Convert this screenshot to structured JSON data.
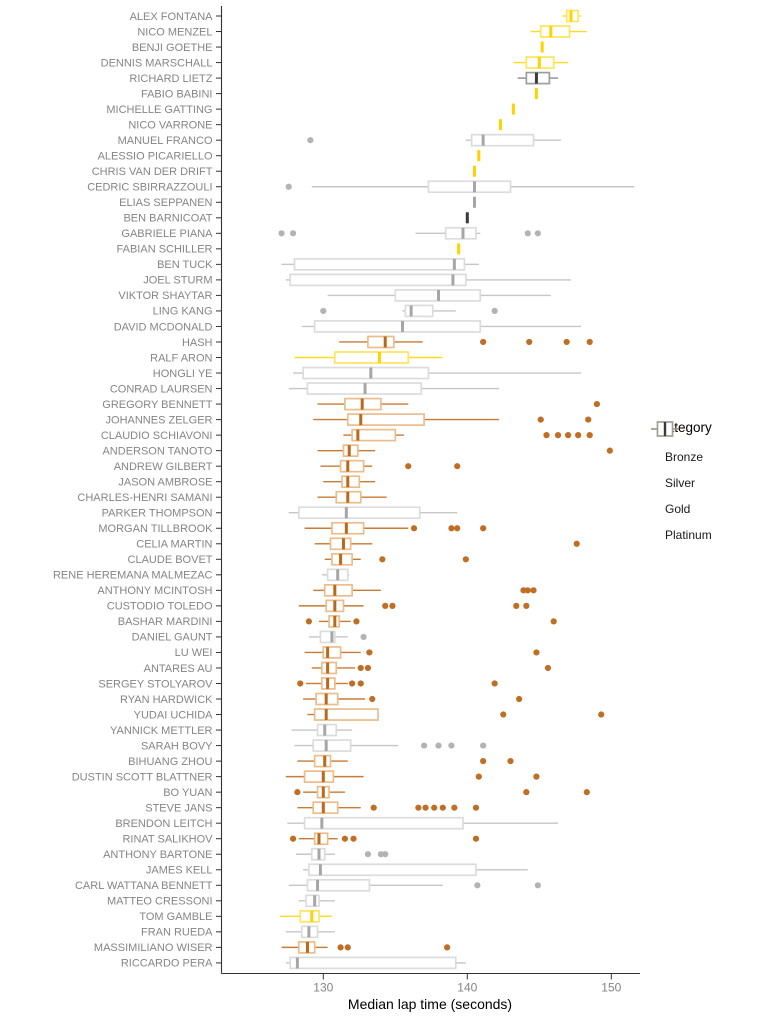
{
  "chart_data": {
    "type": "boxplot",
    "orientation": "horizontal",
    "title": "",
    "xlabel": "Median lap time (seconds)",
    "ylabel": "",
    "x_ticks": [
      130,
      140,
      150
    ],
    "xlim": [
      122.9,
      152.1
    ],
    "grid": false,
    "axis_text_color": "#858585",
    "axis_line_color": "#333333",
    "legend": {
      "title": "Category",
      "position": "right",
      "entries": [
        "Bronze",
        "Silver",
        "Gold",
        "Platinum"
      ]
    },
    "categories": {
      "Bronze": {
        "box": "#EBBD8B",
        "whisker": "#C97A33",
        "line": "#BC671A",
        "point": "#C06E24"
      },
      "Silver": {
        "box": "#DCDCDC",
        "whisker": "#C6C6C6",
        "line": "#A6A6A6",
        "point": "#B3B3B3"
      },
      "Gold": {
        "box": "#FFE45C",
        "whisker": "#FFDB24",
        "line": "#FFD200",
        "point": "#FFD300"
      },
      "Platinum": {
        "box": "#9E9E9E",
        "whisker": "#8C8C8C",
        "line": "#3A3A3A",
        "point": "#555555"
      }
    },
    "rows": [
      {
        "name": "ALEX FONTANA",
        "cat": "Gold",
        "w": [
          146.6,
          146.9,
          147.2,
          147.7,
          147.9
        ],
        "o": []
      },
      {
        "name": "NICO MENZEL",
        "cat": "Gold",
        "w": [
          144.4,
          145.1,
          145.8,
          147.1,
          148.3
        ],
        "o": []
      },
      {
        "name": "BENJI GOETHE",
        "cat": "Gold",
        "w": [
          145.2
        ],
        "o": []
      },
      {
        "name": "DENNIS MARSCHALL",
        "cat": "Gold",
        "w": [
          143.2,
          144.1,
          145.0,
          146.0,
          147.0
        ],
        "o": []
      },
      {
        "name": "RICHARD LIETZ",
        "cat": "Platinum",
        "w": [
          143.5,
          144.1,
          144.8,
          145.7,
          146.3
        ],
        "o": []
      },
      {
        "name": "FABIO BABINI",
        "cat": "Gold",
        "w": [
          144.8
        ],
        "o": []
      },
      {
        "name": "MICHELLE GATTING",
        "cat": "Gold",
        "w": [
          143.2
        ],
        "o": []
      },
      {
        "name": "NICO VARRONE",
        "cat": "Gold",
        "w": [
          142.3
        ],
        "o": []
      },
      {
        "name": "MANUEL FRANCO",
        "cat": "Silver",
        "w": [
          139.9,
          140.3,
          141.1,
          144.6,
          146.5
        ],
        "o": [
          129.1
        ]
      },
      {
        "name": "ALESSIO PICARIELLO",
        "cat": "Gold",
        "w": [
          140.8
        ],
        "o": []
      },
      {
        "name": "CHRIS VAN DER DRIFT",
        "cat": "Gold",
        "w": [
          140.5
        ],
        "o": []
      },
      {
        "name": "CEDRIC SBIRRAZZOULI",
        "cat": "Silver",
        "w": [
          129.2,
          137.3,
          140.5,
          143.0,
          151.6
        ],
        "o": [
          127.6
        ]
      },
      {
        "name": "ELIAS SEPPANEN",
        "cat": "Silver",
        "w": [
          140.5
        ],
        "o": []
      },
      {
        "name": "BEN BARNICOAT",
        "cat": "Platinum",
        "w": [
          140.0
        ],
        "o": []
      },
      {
        "name": "GABRIELE PIANA",
        "cat": "Silver",
        "w": [
          136.4,
          138.5,
          139.7,
          140.6,
          140.9
        ],
        "o": [
          127.1,
          127.9,
          144.2,
          144.9
        ]
      },
      {
        "name": "FABIAN SCHILLER",
        "cat": "Gold",
        "w": [
          139.4
        ],
        "o": []
      },
      {
        "name": "BEN TUCK",
        "cat": "Silver",
        "w": [
          127.1,
          128.0,
          139.1,
          139.8,
          140.8
        ],
        "o": []
      },
      {
        "name": "JOEL STURM",
        "cat": "Silver",
        "w": [
          127.4,
          127.7,
          139.0,
          139.9,
          147.2
        ],
        "o": []
      },
      {
        "name": "VIKTOR SHAYTAR",
        "cat": "Silver",
        "w": [
          130.3,
          135.0,
          138.0,
          140.9,
          145.8
        ],
        "o": []
      },
      {
        "name": "LING KANG",
        "cat": "Silver",
        "w": [
          135.5,
          135.7,
          136.1,
          137.6,
          139.2
        ],
        "o": [
          130.0,
          141.9
        ]
      },
      {
        "name": "DAVID MCDONALD",
        "cat": "Silver",
        "w": [
          128.5,
          129.4,
          135.5,
          140.9,
          147.9
        ],
        "o": []
      },
      {
        "name": "HASH",
        "cat": "Bronze",
        "w": [
          131.1,
          133.1,
          134.3,
          134.9,
          136.9
        ],
        "o": [
          141.1,
          144.3,
          146.9,
          148.5
        ]
      },
      {
        "name": "RALF ARON",
        "cat": "Gold",
        "w": [
          128.0,
          130.8,
          133.9,
          135.9,
          138.3
        ],
        "o": []
      },
      {
        "name": "HONGLI YE",
        "cat": "Silver",
        "w": [
          127.9,
          128.6,
          133.3,
          137.3,
          147.9
        ],
        "o": []
      },
      {
        "name": "CONRAD LAURSEN",
        "cat": "Silver",
        "w": [
          127.6,
          128.9,
          132.9,
          136.8,
          142.2
        ],
        "o": []
      },
      {
        "name": "GREGORY BENNETT",
        "cat": "Bronze",
        "w": [
          129.6,
          131.5,
          132.7,
          134.0,
          135.9
        ],
        "o": [
          149.0
        ]
      },
      {
        "name": "JOHANNES ZELGER",
        "cat": "Bronze",
        "w": [
          129.3,
          131.7,
          132.6,
          137.0,
          142.2
        ],
        "o": [
          145.1,
          148.4
        ]
      },
      {
        "name": "CLAUDIO SCHIAVONI",
        "cat": "Bronze",
        "w": [
          131.4,
          132.0,
          132.4,
          135.0,
          135.6
        ],
        "o": [
          145.5,
          146.3,
          147.0,
          147.7,
          148.5
        ]
      },
      {
        "name": "ANDERSON TANOTO",
        "cat": "Bronze",
        "w": [
          129.6,
          131.4,
          131.8,
          132.4,
          133.6
        ],
        "o": [
          149.9
        ]
      },
      {
        "name": "ANDREW GILBERT",
        "cat": "Bronze",
        "w": [
          129.8,
          131.2,
          131.7,
          132.8,
          133.4
        ],
        "o": [
          135.9,
          139.3
        ]
      },
      {
        "name": "JASON AMBROSE",
        "cat": "Bronze",
        "w": [
          130.0,
          131.3,
          131.7,
          132.5,
          133.6
        ],
        "o": []
      },
      {
        "name": "CHARLES-HENRI SAMANI",
        "cat": "Bronze",
        "w": [
          129.6,
          130.9,
          131.7,
          132.6,
          134.4
        ],
        "o": []
      },
      {
        "name": "PARKER THOMPSON",
        "cat": "Silver",
        "w": [
          127.6,
          128.3,
          131.6,
          136.7,
          139.3
        ],
        "o": []
      },
      {
        "name": "MORGAN TILLBROOK",
        "cat": "Bronze",
        "w": [
          128.7,
          130.6,
          131.6,
          132.8,
          135.9
        ],
        "o": [
          136.3,
          138.9,
          139.3,
          141.1
        ]
      },
      {
        "name": "CELIA MARTIN",
        "cat": "Bronze",
        "w": [
          129.4,
          130.5,
          131.4,
          131.9,
          133.4
        ],
        "o": [
          147.6
        ]
      },
      {
        "name": "CLAUDE BOVET",
        "cat": "Bronze",
        "w": [
          130.1,
          130.6,
          131.2,
          132.0,
          132.6
        ],
        "o": [
          134.1,
          139.9
        ]
      },
      {
        "name": "RENE HEREMANA MALMEZAC",
        "cat": "Silver",
        "w": [
          129.9,
          130.3,
          131.0,
          131.7,
          131.8
        ],
        "o": []
      },
      {
        "name": "ANTHONY MCINTOSH",
        "cat": "Bronze",
        "w": [
          129.3,
          130.1,
          130.8,
          132.0,
          134.0
        ],
        "o": [
          143.9,
          144.2,
          144.6
        ]
      },
      {
        "name": "CUSTODIO TOLEDO",
        "cat": "Bronze",
        "w": [
          128.3,
          130.2,
          130.8,
          131.4,
          132.8
        ],
        "o": [
          134.3,
          134.8,
          143.4,
          144.1
        ]
      },
      {
        "name": "BASHAR MARDINI",
        "cat": "Bronze",
        "w": [
          129.7,
          130.4,
          130.8,
          131.1,
          131.9
        ],
        "o": [
          129.0,
          132.3,
          146.0
        ]
      },
      {
        "name": "DANIEL GAUNT",
        "cat": "Silver",
        "w": [
          129.0,
          129.8,
          130.6,
          130.8,
          131.7
        ],
        "o": [
          132.8
        ]
      },
      {
        "name": "LU WEI",
        "cat": "Bronze",
        "w": [
          128.7,
          130.0,
          130.3,
          131.2,
          132.6
        ],
        "o": [
          133.2,
          144.8
        ]
      },
      {
        "name": "ANTARES AU",
        "cat": "Bronze",
        "w": [
          129.2,
          129.9,
          130.3,
          130.9,
          132.2
        ],
        "o": [
          132.6,
          133.1,
          145.6
        ]
      },
      {
        "name": "SERGEY STOLYAROV",
        "cat": "Bronze",
        "w": [
          128.8,
          129.9,
          130.3,
          130.8,
          131.7
        ],
        "o": [
          128.4,
          132.0,
          132.6,
          141.9
        ]
      },
      {
        "name": "RYAN HARDWICK",
        "cat": "Bronze",
        "w": [
          128.6,
          129.5,
          130.2,
          131.0,
          132.9
        ],
        "o": [
          133.4,
          143.6
        ]
      },
      {
        "name": "YUDAI UCHIDA",
        "cat": "Bronze",
        "w": [
          128.9,
          129.4,
          130.2,
          133.8,
          133.8
        ],
        "o": [
          142.5,
          149.3
        ]
      },
      {
        "name": "YANNICK METTLER",
        "cat": "Silver",
        "w": [
          127.8,
          129.6,
          130.1,
          130.9,
          132.0
        ],
        "o": []
      },
      {
        "name": "SARAH BOVY",
        "cat": "Silver",
        "w": [
          128.0,
          129.3,
          130.2,
          131.9,
          135.2
        ],
        "o": [
          137.0,
          138.0,
          138.9,
          141.1
        ]
      },
      {
        "name": "BIHUANG ZHOU",
        "cat": "Bronze",
        "w": [
          128.2,
          129.4,
          130.1,
          130.5,
          131.7
        ],
        "o": [
          141.1,
          143.0
        ]
      },
      {
        "name": "DUSTIN SCOTT BLATTNER",
        "cat": "Bronze",
        "w": [
          127.4,
          128.7,
          130.0,
          130.7,
          132.8
        ],
        "o": [
          140.8,
          144.8
        ]
      },
      {
        "name": "BO YUAN",
        "cat": "Bronze",
        "w": [
          128.6,
          129.6,
          130.0,
          130.4,
          131.5
        ],
        "o": [
          128.2,
          144.1,
          148.3
        ]
      },
      {
        "name": "STEVE JANS",
        "cat": "Bronze",
        "w": [
          128.2,
          129.3,
          130.0,
          131.0,
          132.6
        ],
        "o": [
          133.5,
          136.6,
          137.1,
          137.7,
          138.3,
          139.1,
          140.6
        ]
      },
      {
        "name": "BRENDON LEITCH",
        "cat": "Silver",
        "w": [
          127.5,
          128.7,
          129.9,
          139.7,
          146.3
        ],
        "o": []
      },
      {
        "name": "RINAT SALIKHOV",
        "cat": "Bronze",
        "w": [
          128.3,
          129.4,
          129.7,
          130.3,
          131.0
        ],
        "o": [
          127.9,
          131.5,
          132.1,
          140.6
        ]
      },
      {
        "name": "ANTHONY BARTONE",
        "cat": "Silver",
        "w": [
          128.1,
          129.2,
          129.7,
          130.1,
          130.8
        ],
        "o": [
          133.1,
          134.0,
          134.3
        ]
      },
      {
        "name": "JAMES KELL",
        "cat": "Silver",
        "w": [
          128.6,
          129.0,
          129.8,
          140.6,
          144.2
        ],
        "o": []
      },
      {
        "name": "CARL WATTANA BENNETT",
        "cat": "Silver",
        "w": [
          127.6,
          128.9,
          129.6,
          133.2,
          138.3
        ],
        "o": [
          140.7,
          144.9
        ]
      },
      {
        "name": "MATTEO CRESSONI",
        "cat": "Silver",
        "w": [
          128.3,
          128.8,
          129.4,
          129.7,
          130.8
        ],
        "o": []
      },
      {
        "name": "TOM GAMBLE",
        "cat": "Gold",
        "w": [
          127.0,
          128.4,
          129.2,
          129.7,
          130.6
        ],
        "o": []
      },
      {
        "name": "FRAN RUEDA",
        "cat": "Silver",
        "w": [
          127.4,
          128.5,
          129.0,
          129.6,
          130.8
        ],
        "o": []
      },
      {
        "name": "MASSIMILIANO WISER",
        "cat": "Bronze",
        "w": [
          127.1,
          128.3,
          128.9,
          129.4,
          130.3
        ],
        "o": [
          131.2,
          131.7,
          138.6
        ]
      },
      {
        "name": "RICCARDO PERA",
        "cat": "Silver",
        "w": [
          127.4,
          127.7,
          128.2,
          139.2,
          139.9
        ],
        "o": []
      }
    ]
  }
}
